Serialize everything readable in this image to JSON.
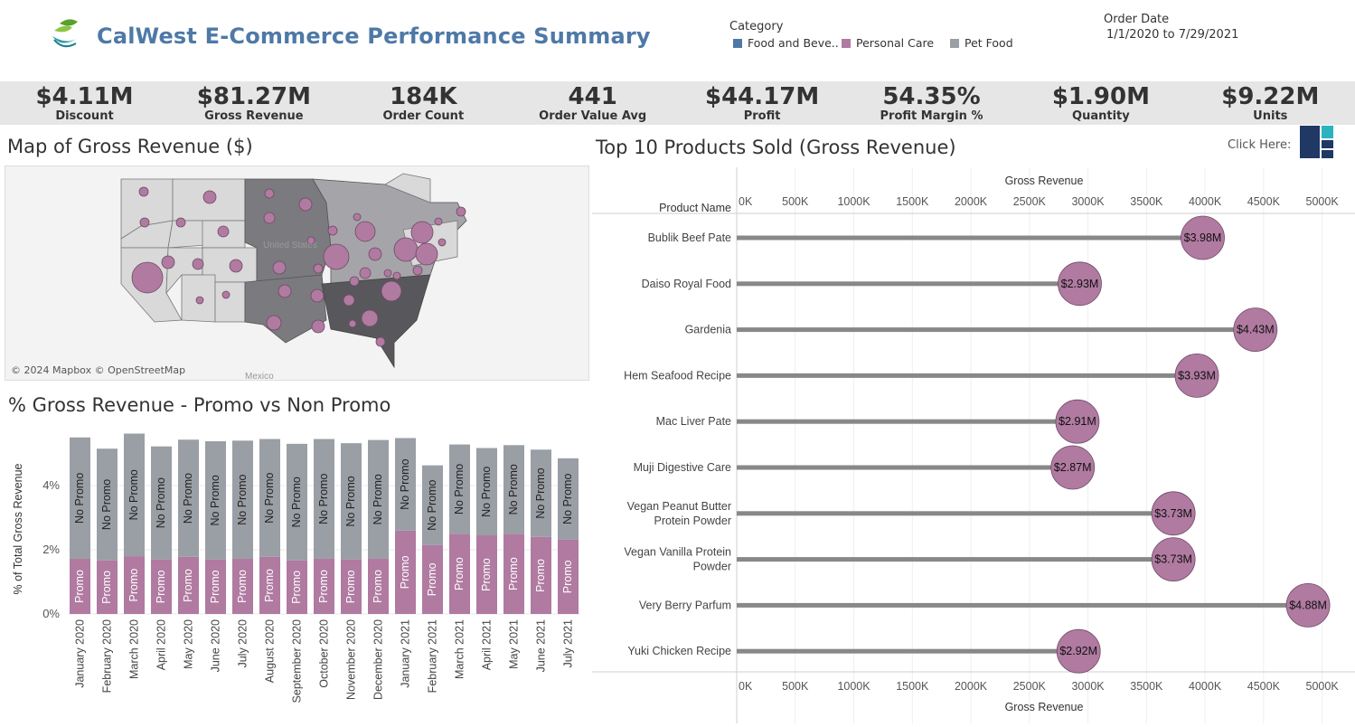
{
  "header": {
    "title": "CalWest E-Commerce Performance Summary",
    "category_label": "Category",
    "legend": [
      {
        "label": "Food and Beve..",
        "color": "#4e79a7"
      },
      {
        "label": "Personal Care",
        "color": "#b07aa1"
      },
      {
        "label": "Pet Food",
        "color": "#9a9ea5"
      }
    ],
    "order_date_label": "Order Date",
    "order_date_value": "1/1/2020 to 7/29/2021"
  },
  "kpis": [
    {
      "value": "$4.11M",
      "label": "Discount"
    },
    {
      "value": "$81.27M",
      "label": "Gross Revenue"
    },
    {
      "value": "184K",
      "label": "Order Count"
    },
    {
      "value": "441",
      "label": "Order Value Avg"
    },
    {
      "value": "$44.17M",
      "label": "Profit"
    },
    {
      "value": "54.35%",
      "label": "Profit Margin %"
    },
    {
      "value": "$1.90M",
      "label": "Quantity"
    },
    {
      "value": "$9.22M",
      "label": "Units"
    }
  ],
  "map": {
    "title": "Map of Gross Revenue ($)",
    "credit": "© 2024 Mapbox © OpenStreetMap",
    "labels": {
      "country": "United States",
      "mexico": "Mexico"
    }
  },
  "top10": {
    "title": "Top 10 Products Sold (Gross Revenue)",
    "click_label": "Click Here:",
    "icon": "treemap-icon"
  },
  "chart_data": [
    {
      "type": "bar",
      "title": "% Gross Revenue - Promo vs Non Promo",
      "ylabel": "% of Total Gross Revenue",
      "ylim": [
        0,
        6
      ],
      "yticks": [
        "0%",
        "2%",
        "4%"
      ],
      "stacked": true,
      "categories": [
        "January 2020",
        "February 2020",
        "March 2020",
        "April 2020",
        "May 2020",
        "June 2020",
        "July 2020",
        "August 2020",
        "September 2020",
        "October 2020",
        "November 2020",
        "December 2020",
        "January 2021",
        "February 2021",
        "March 2021",
        "April 2021",
        "May 2021",
        "June 2021",
        "July 2021"
      ],
      "series": [
        {
          "name": "Promo",
          "color": "#b07aa1",
          "values": [
            1.72,
            1.67,
            1.8,
            1.7,
            1.78,
            1.7,
            1.72,
            1.78,
            1.67,
            1.72,
            1.7,
            1.72,
            2.6,
            2.15,
            2.5,
            2.45,
            2.5,
            2.4,
            2.32
          ]
        },
        {
          "name": "No Promo",
          "color": "#9a9ea5",
          "values": [
            3.78,
            3.48,
            3.82,
            3.52,
            3.65,
            3.68,
            3.68,
            3.67,
            3.63,
            3.73,
            3.62,
            3.7,
            2.88,
            2.48,
            2.78,
            2.72,
            2.76,
            2.72,
            2.53
          ]
        }
      ]
    },
    {
      "type": "lollipop",
      "title": "Top 10 Products Sold (Gross Revenue)",
      "ycol_label": "Product Name",
      "xlabel": "Gross Revenue",
      "xlim": [
        0,
        5250
      ],
      "xticks": [
        "0K",
        "500K",
        "1000K",
        "1500K",
        "2000K",
        "2500K",
        "3000K",
        "3500K",
        "4000K",
        "4500K",
        "5000K"
      ],
      "categories": [
        "Bublik Beef Pate",
        "Daiso Royal Food",
        "Gardenia",
        "Hem Seafood Recipe",
        "Mac Liver Pate",
        "Muji Digestive Care",
        "Vegan Peanut Butter Protein Powder",
        "Vegan Vanilla Protein Powder",
        "Very Berry Parfum",
        "Yuki Chicken Recipe"
      ],
      "values": [
        3980,
        2930,
        4430,
        3930,
        2910,
        2870,
        3730,
        3730,
        4880,
        2920
      ],
      "value_labels": [
        "$3.98M",
        "$2.93M",
        "$4.43M",
        "$3.93M",
        "$2.91M",
        "$2.87M",
        "$3.73M",
        "$3.73M",
        "$4.88M",
        "$2.92M"
      ],
      "bar_color": "#888888",
      "dot_color": "#b07aa1"
    }
  ]
}
